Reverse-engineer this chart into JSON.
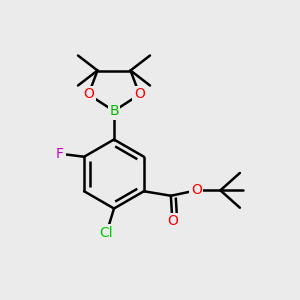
{
  "bg_color": "#ebebeb",
  "bond_color": "#000000",
  "bond_width": 1.8,
  "atom_colors": {
    "B": "#00bb00",
    "O": "#ff0000",
    "F": "#cc00cc",
    "Cl": "#00cc00"
  }
}
